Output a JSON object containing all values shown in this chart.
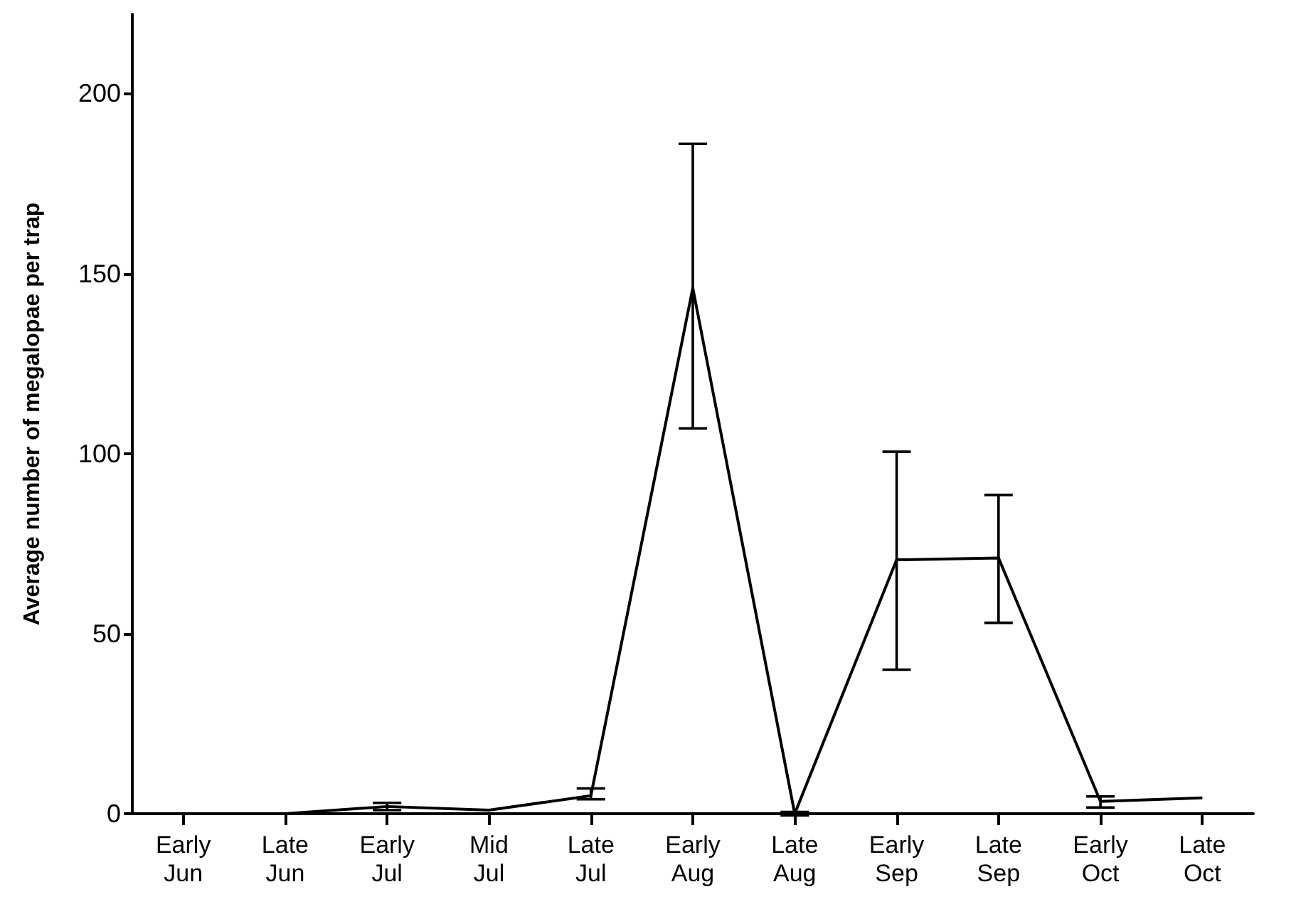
{
  "chart_data": {
    "type": "line",
    "ylabel": "Average number of megalopae per trap",
    "categories": [
      "Early\nJun",
      "Late\nJun",
      "Early\nJul",
      "Mid\nJul",
      "Late\nJul",
      "Early\nAug",
      "Late\nAug",
      "Early\nSep",
      "Late\nSep",
      "Early\nOct",
      "Late\nOct"
    ],
    "series": [
      {
        "color": "#000000",
        "values": [
          null,
          0,
          2,
          1,
          5,
          146,
          0,
          70.5,
          71,
          3.4,
          4.4
        ],
        "errors": [
          null,
          null,
          1,
          null,
          [
            4,
            7
          ],
          [
            107,
            186
          ],
          0.5,
          [
            40,
            100.5
          ],
          [
            53,
            88.5
          ],
          [
            1.7,
            4.8
          ],
          null
        ]
      }
    ],
    "ylim": [
      0,
      222
    ],
    "yticks": [
      0,
      50,
      100,
      150,
      200
    ],
    "grid": false,
    "marker": "none",
    "line_style": "solid"
  }
}
